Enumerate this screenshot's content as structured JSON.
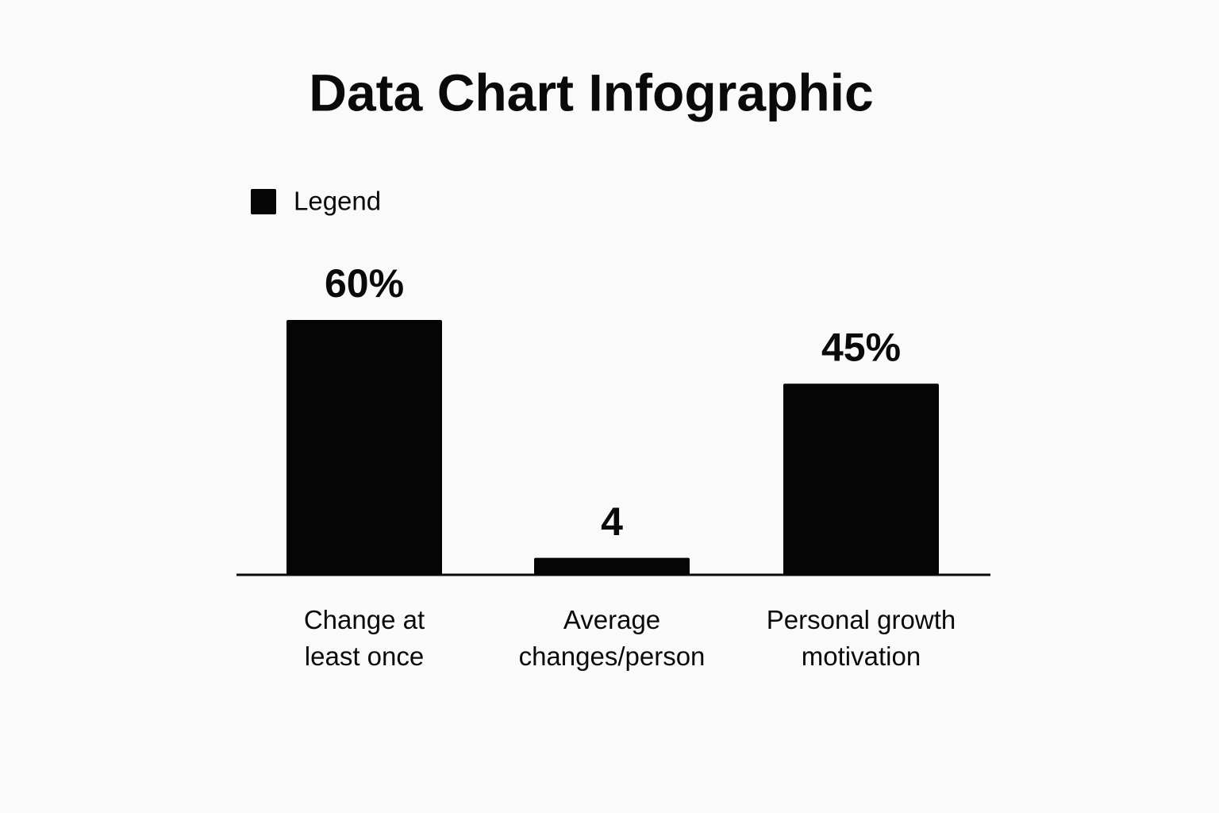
{
  "chart_data": {
    "type": "bar",
    "title": "Data Chart Infographic",
    "categories": [
      "Change at\nleast once",
      "Average\nchanges/person",
      "Personal growth\nmotivation"
    ],
    "series": [
      {
        "name": "Legend",
        "color": "#050505",
        "values": [
          60,
          4,
          45
        ],
        "value_labels": [
          "60%",
          "4",
          "45%"
        ]
      }
    ]
  }
}
